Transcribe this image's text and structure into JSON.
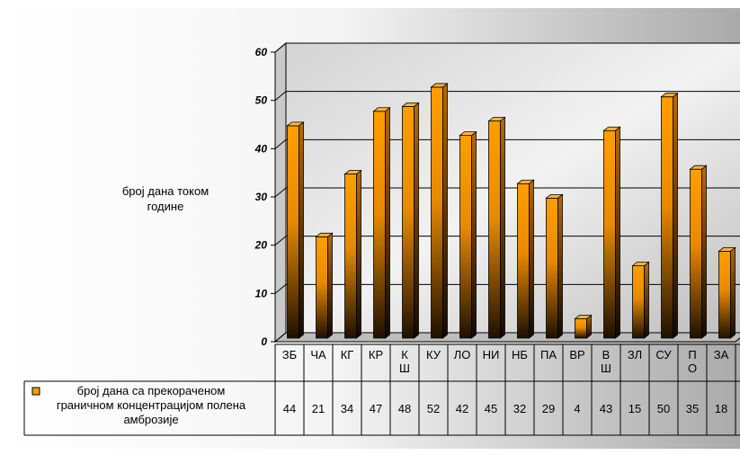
{
  "chart_data": {
    "type": "bar",
    "ylabel_lines": [
      "број дана током",
      "године"
    ],
    "ylim": [
      0,
      60
    ],
    "yticks": [
      "0",
      "10",
      "20",
      "30",
      "40",
      "50",
      "60"
    ],
    "grid": true,
    "legend_position": "bottom-left (data table)",
    "categories": [
      [
        "ЗБ"
      ],
      [
        "ЧА"
      ],
      [
        "КГ"
      ],
      [
        "КР"
      ],
      [
        "К",
        "Ш"
      ],
      [
        "КУ"
      ],
      [
        "ЛО"
      ],
      [
        "НИ"
      ],
      [
        "НБ"
      ],
      [
        "ПА"
      ],
      [
        "ВР"
      ],
      [
        "В",
        "Ш"
      ],
      [
        "ЗЛ"
      ],
      [
        "СУ"
      ],
      [
        "П",
        "О"
      ],
      [
        "ЗА"
      ]
    ],
    "series": [
      {
        "name_lines": [
          "број дана са прекораченом",
          "граничном концентрацијом полена",
          "амброзије"
        ],
        "color": "#ff9900",
        "values": [
          44,
          21,
          34,
          47,
          48,
          52,
          42,
          45,
          32,
          29,
          4,
          43,
          15,
          50,
          35,
          18
        ]
      }
    ]
  }
}
